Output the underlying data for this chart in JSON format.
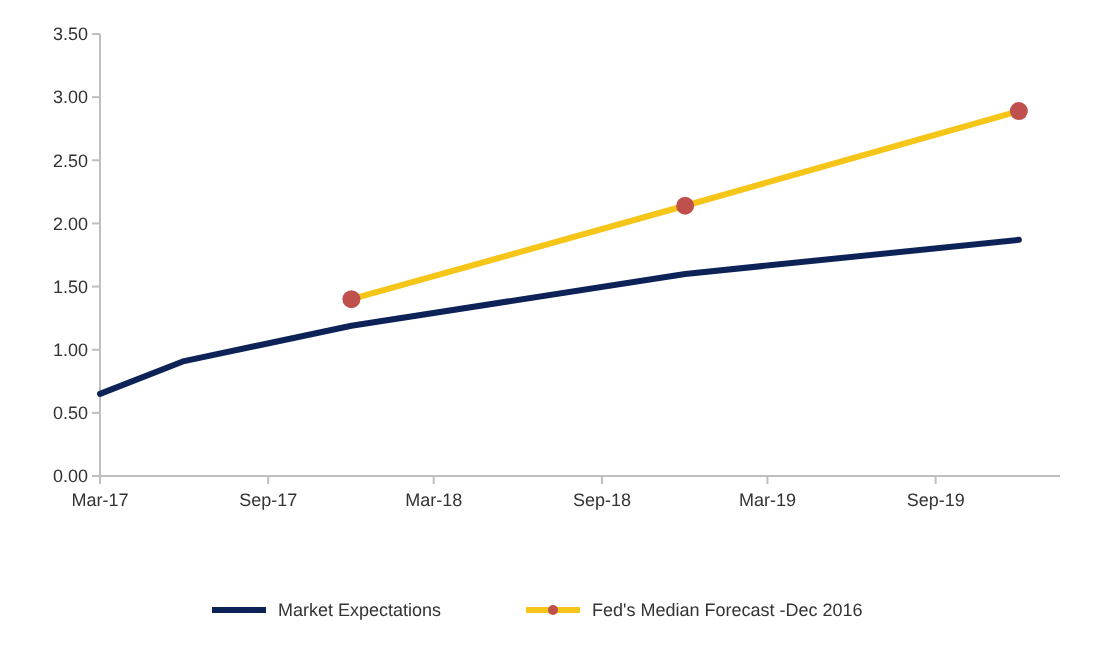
{
  "chart_data": {
    "type": "line",
    "series": [
      {
        "name": "Market Expectations",
        "color": "#0d2357",
        "marker": "none",
        "x": [
          "2017-03-01",
          "2017-06-01",
          "2017-12-01",
          "2018-12-01",
          "2019-12-01"
        ],
        "values": [
          0.65,
          0.91,
          1.19,
          1.6,
          1.87
        ]
      },
      {
        "name": "Fed's Median Forecast -Dec 2016",
        "color": "#f5c518",
        "marker": "circle",
        "x": [
          "2017-12-01",
          "2018-12-01",
          "2019-12-01"
        ],
        "values": [
          1.4,
          2.14,
          2.89
        ]
      }
    ],
    "xlim": [
      "2017-03-01",
      "2020-01-15"
    ],
    "xticks": [
      {
        "value": "2017-03-01",
        "label": "Mar-17"
      },
      {
        "value": "2017-09-01",
        "label": "Sep-17"
      },
      {
        "value": "2018-03-01",
        "label": "Mar-18"
      },
      {
        "value": "2018-09-01",
        "label": "Sep-18"
      },
      {
        "value": "2019-03-01",
        "label": "Mar-19"
      },
      {
        "value": "2019-09-01",
        "label": "Sep-19"
      }
    ],
    "ylim": [
      0,
      3.5
    ],
    "yticks": [
      {
        "value": 0,
        "label": "0.00"
      },
      {
        "value": 0.5,
        "label": "0.50"
      },
      {
        "value": 1,
        "label": "1.00"
      },
      {
        "value": 1.5,
        "label": "1.50"
      },
      {
        "value": 2,
        "label": "2.00"
      },
      {
        "value": 2.5,
        "label": "2.50"
      },
      {
        "value": 3,
        "label": "3.00"
      },
      {
        "value": 3.5,
        "label": "3.50"
      }
    ],
    "grid": false,
    "legend": "bottom",
    "line_style": "solid"
  }
}
